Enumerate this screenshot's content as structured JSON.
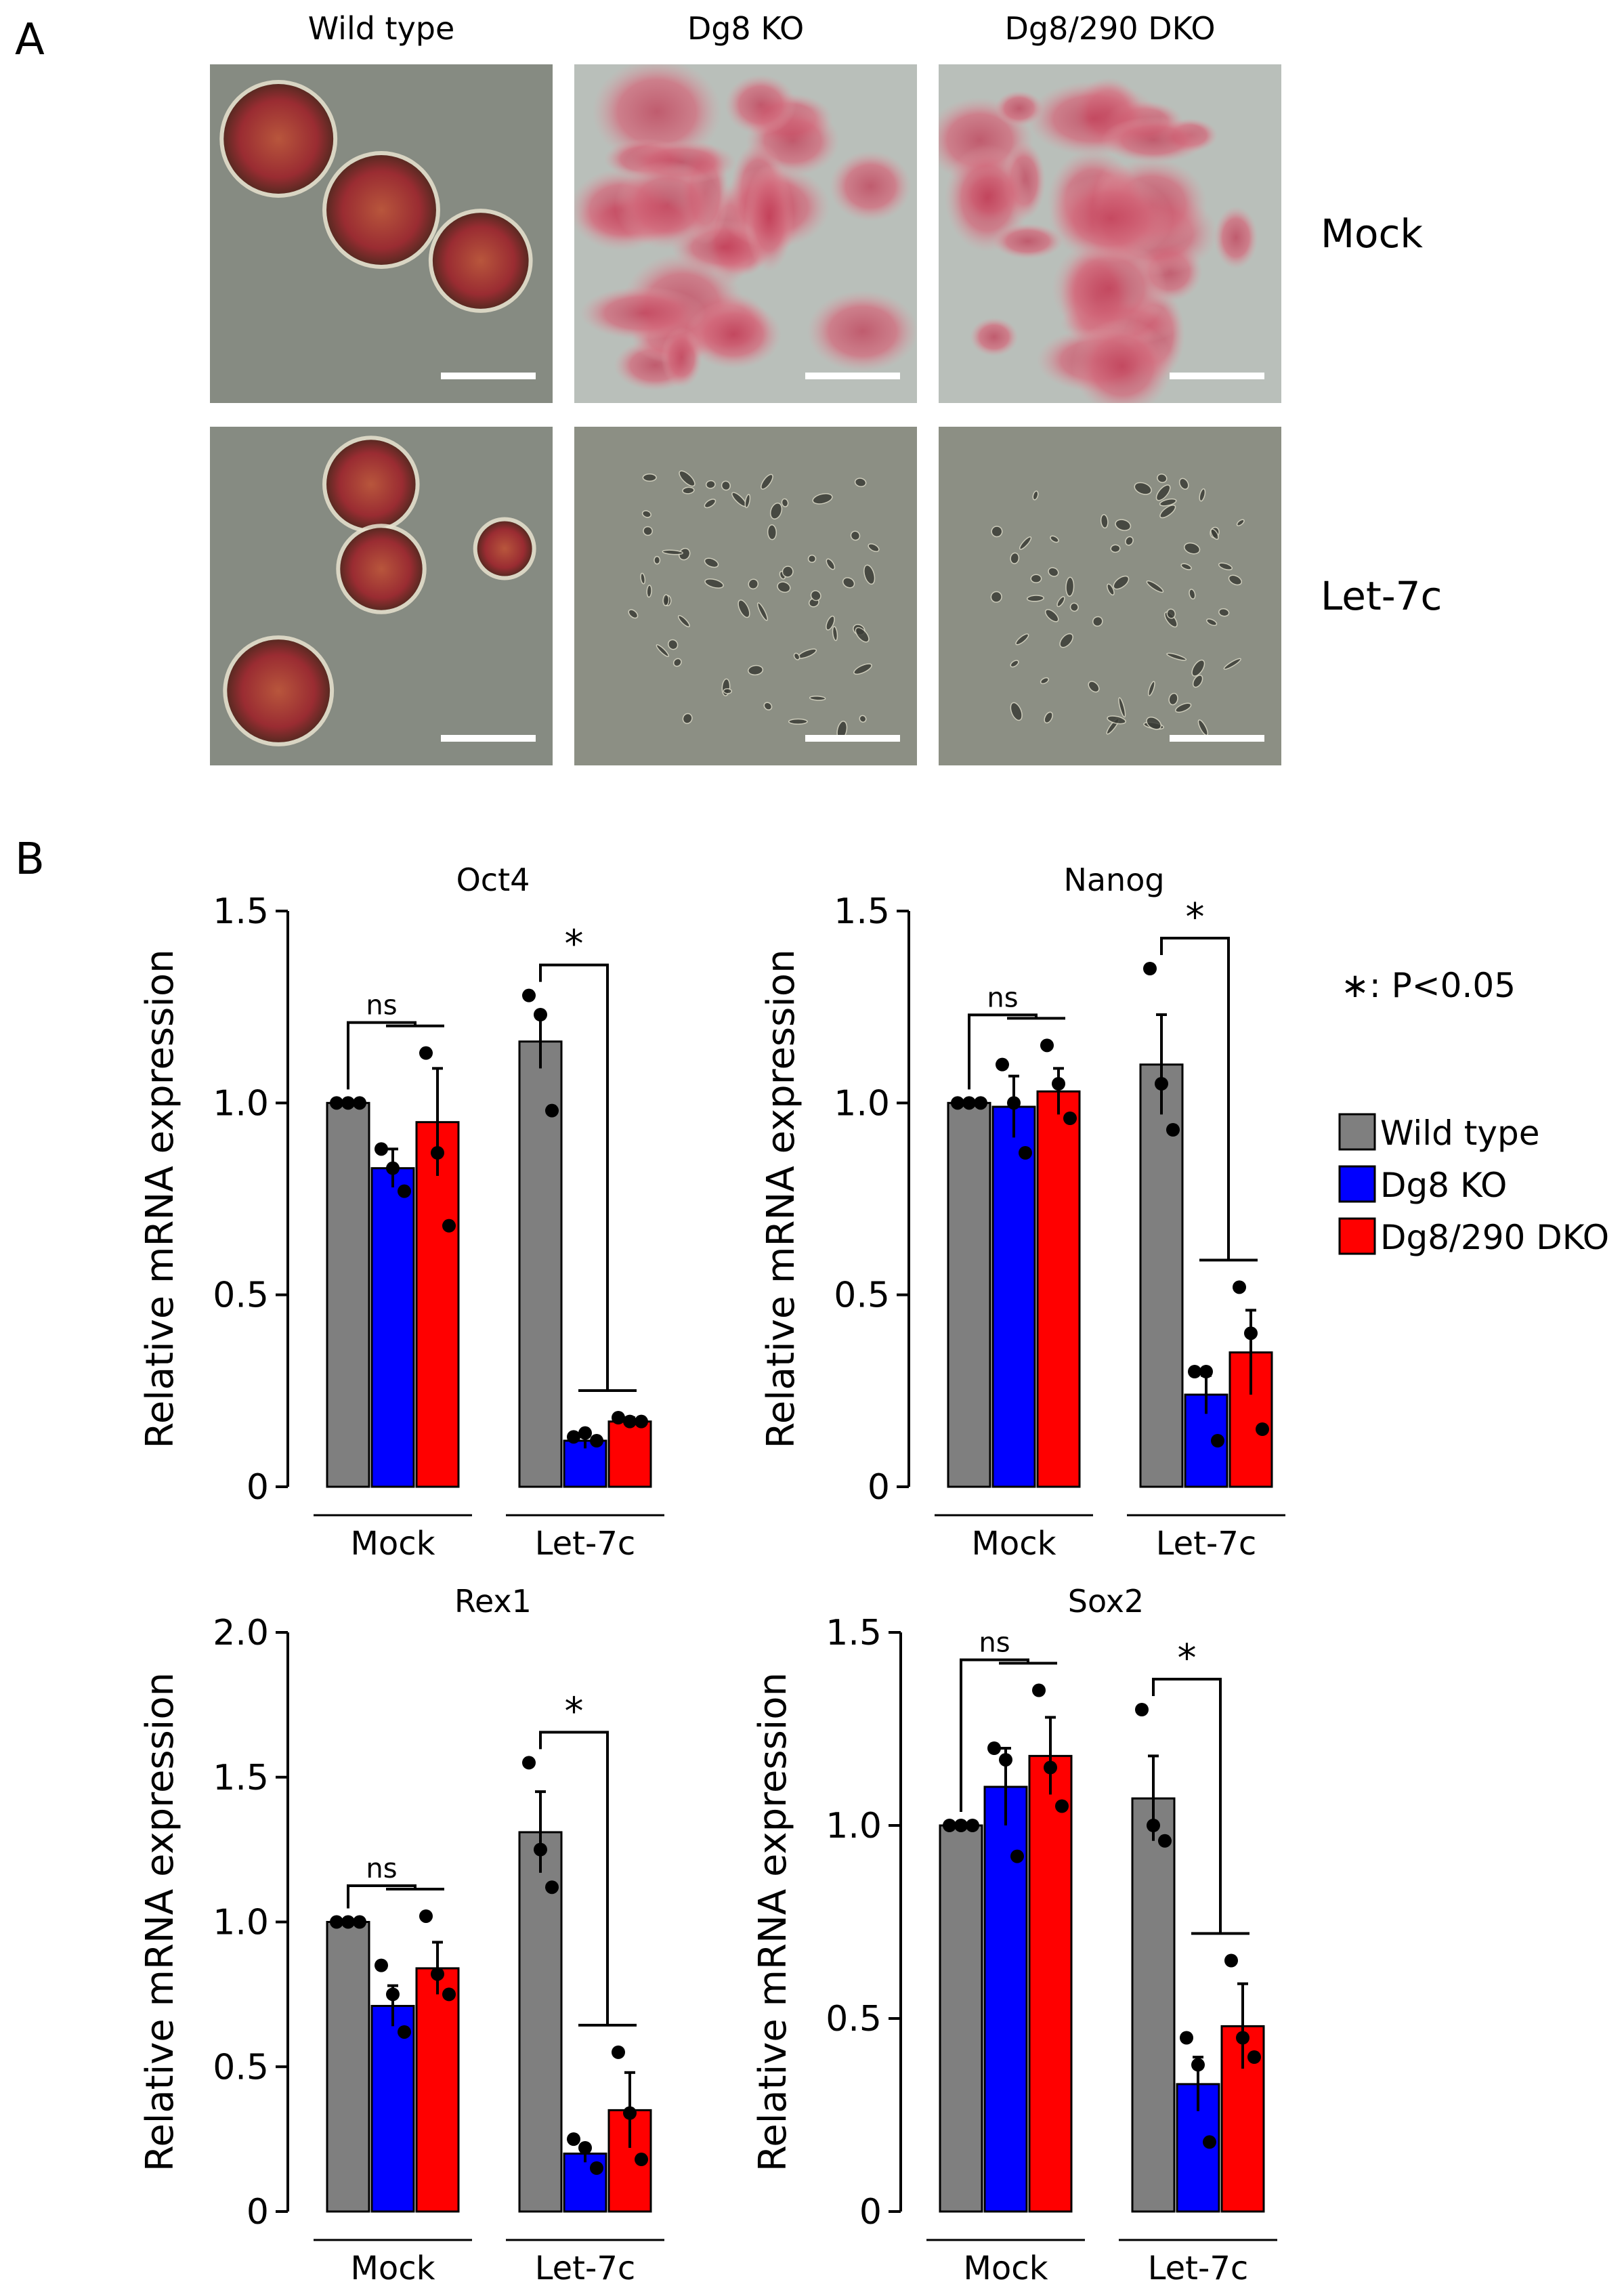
{
  "panel_a": {
    "letter": "A",
    "columns": [
      "Wild type",
      "Dg8 KO",
      "Dg8/290 DKO"
    ],
    "rows": [
      "Mock",
      "Let-7c"
    ],
    "micrographs": [
      {
        "row": "Mock",
        "column": "Wild type",
        "content": "round compact colonies, red stained"
      },
      {
        "row": "Mock",
        "column": "Dg8 KO",
        "content": "spread red-stained cell clusters"
      },
      {
        "row": "Mock",
        "column": "Dg8/290 DKO",
        "content": "spread red-stained cell clusters"
      },
      {
        "row": "Let-7c",
        "column": "Wild type",
        "content": "round compact colonies, red stained"
      },
      {
        "row": "Let-7c",
        "column": "Dg8 KO",
        "content": "scattered differentiated cells, unstained"
      },
      {
        "row": "Let-7c",
        "column": "Dg8/290 DKO",
        "content": "scattered differentiated cells, unstained"
      }
    ]
  },
  "panel_b": {
    "letter": "B",
    "significance_note": "∗: P<0.05",
    "legend": [
      {
        "label": "Wild type",
        "color": "#7f7f7f"
      },
      {
        "label": "Dg8 KO",
        "color": "#0000ff"
      },
      {
        "label": "Dg8/290 DKO",
        "color": "#ff0000"
      }
    ]
  },
  "chart_data": [
    {
      "type": "bar",
      "title": "Oct4",
      "ylabel": "Relative mRNA expression",
      "ylim": [
        0,
        1.5
      ],
      "yticks": [
        "0",
        "0.5",
        "1.0",
        "1.5"
      ],
      "groups": [
        "Mock",
        "Let-7c"
      ],
      "series": [
        {
          "name": "Wild type",
          "values": [
            1.0,
            1.16
          ],
          "errors": [
            0.0,
            0.07
          ],
          "points": [
            [
              1.0,
              1.0,
              1.0
            ],
            [
              1.28,
              1.23,
              0.98
            ]
          ]
        },
        {
          "name": "Dg8 KO",
          "values": [
            0.83,
            0.12
          ],
          "errors": [
            0.05,
            0.02
          ],
          "points": [
            [
              0.88,
              0.83,
              0.77
            ],
            [
              0.13,
              0.14,
              0.12
            ]
          ]
        },
        {
          "name": "Dg8/290 DKO",
          "values": [
            0.95,
            0.17
          ],
          "errors": [
            0.14,
            0.01
          ],
          "points": [
            [
              1.13,
              0.87,
              0.68
            ],
            [
              0.18,
              0.17,
              0.17
            ]
          ]
        }
      ],
      "annotations": [
        {
          "text": "ns",
          "group": "Mock"
        },
        {
          "text": "*",
          "group": "Let-7c"
        }
      ]
    },
    {
      "type": "bar",
      "title": "Nanog",
      "ylabel": "Relative mRNA expression",
      "ylim": [
        0,
        1.5
      ],
      "yticks": [
        "0",
        "0.5",
        "1.0",
        "1.5"
      ],
      "groups": [
        "Mock",
        "Let-7c"
      ],
      "series": [
        {
          "name": "Wild type",
          "values": [
            1.0,
            1.1
          ],
          "errors": [
            0.0,
            0.13
          ],
          "points": [
            [
              1.0,
              1.0,
              1.0
            ],
            [
              1.35,
              1.05,
              0.93
            ]
          ]
        },
        {
          "name": "Dg8 KO",
          "values": [
            0.99,
            0.24
          ],
          "errors": [
            0.08,
            0.05
          ],
          "points": [
            [
              1.1,
              1.0,
              0.87
            ],
            [
              0.3,
              0.3,
              0.12
            ]
          ]
        },
        {
          "name": "Dg8/290 DKO",
          "values": [
            1.03,
            0.35
          ],
          "errors": [
            0.06,
            0.11
          ],
          "points": [
            [
              1.15,
              1.05,
              0.96
            ],
            [
              0.52,
              0.4,
              0.15
            ]
          ]
        }
      ],
      "annotations": [
        {
          "text": "ns",
          "group": "Mock"
        },
        {
          "text": "*",
          "group": "Let-7c"
        }
      ]
    },
    {
      "type": "bar",
      "title": "Rex1",
      "ylabel": "Relative mRNA expression",
      "ylim": [
        0,
        2.0
      ],
      "yticks": [
        "0",
        "0.5",
        "1.0",
        "1.5",
        "2.0"
      ],
      "groups": [
        "Mock",
        "Let-7c"
      ],
      "series": [
        {
          "name": "Wild type",
          "values": [
            1.0,
            1.31
          ],
          "errors": [
            0.0,
            0.14
          ],
          "points": [
            [
              1.0,
              1.0,
              1.0
            ],
            [
              1.55,
              1.25,
              1.12
            ]
          ]
        },
        {
          "name": "Dg8 KO",
          "values": [
            0.71,
            0.2
          ],
          "errors": [
            0.07,
            0.03
          ],
          "points": [
            [
              0.85,
              0.75,
              0.62
            ],
            [
              0.25,
              0.22,
              0.15
            ]
          ]
        },
        {
          "name": "Dg8/290 DKO",
          "values": [
            0.84,
            0.35
          ],
          "errors": [
            0.09,
            0.13
          ],
          "points": [
            [
              1.02,
              0.82,
              0.75
            ],
            [
              0.55,
              0.34,
              0.18
            ]
          ]
        }
      ],
      "annotations": [
        {
          "text": "ns",
          "group": "Mock"
        },
        {
          "text": "*",
          "group": "Let-7c"
        }
      ]
    },
    {
      "type": "bar",
      "title": "Sox2",
      "ylabel": "Relative mRNA expression",
      "ylim": [
        0,
        1.5
      ],
      "yticks": [
        "0",
        "0.5",
        "1.0",
        "1.5"
      ],
      "groups": [
        "Mock",
        "Let-7c"
      ],
      "series": [
        {
          "name": "Wild type",
          "values": [
            1.0,
            1.07
          ],
          "errors": [
            0.0,
            0.11
          ],
          "points": [
            [
              1.0,
              1.0,
              1.0
            ],
            [
              1.3,
              1.0,
              0.96
            ]
          ]
        },
        {
          "name": "Dg8 KO",
          "values": [
            1.1,
            0.33
          ],
          "errors": [
            0.1,
            0.07
          ],
          "points": [
            [
              1.2,
              1.17,
              0.92
            ],
            [
              0.45,
              0.38,
              0.18
            ]
          ]
        },
        {
          "name": "Dg8/290 DKO",
          "values": [
            1.18,
            0.48
          ],
          "errors": [
            0.1,
            0.11
          ],
          "points": [
            [
              1.35,
              1.15,
              1.05
            ],
            [
              0.65,
              0.45,
              0.4
            ]
          ]
        }
      ],
      "annotations": [
        {
          "text": "ns",
          "group": "Mock"
        },
        {
          "text": "*",
          "group": "Let-7c"
        }
      ]
    }
  ]
}
